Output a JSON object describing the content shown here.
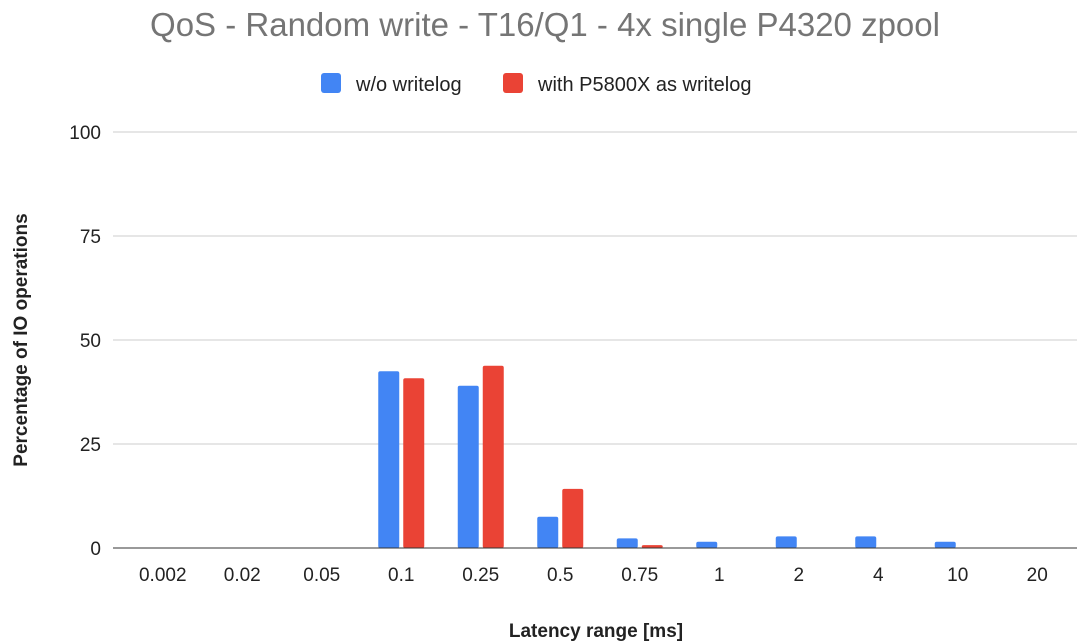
{
  "chart_data": {
    "type": "bar",
    "title": "QoS - Random write - T16/Q1 - 4x single P4320 zpool",
    "xlabel": "Latency range [ms]",
    "ylabel": "Percentage of IO operations",
    "categories": [
      "0.002",
      "0.02",
      "0.05",
      "0.1",
      "0.25",
      "0.5",
      "0.75",
      "1",
      "2",
      "4",
      "10",
      "20"
    ],
    "series": [
      {
        "name": "w/o writelog",
        "color": "#4285f4",
        "values": [
          0,
          0,
          0,
          42.5,
          39,
          7.5,
          2.3,
          1.5,
          2.8,
          2.8,
          1.5,
          0
        ]
      },
      {
        "name": "with P5800X as writelog",
        "color": "#ea4335",
        "values": [
          0,
          0,
          0,
          40.8,
          43.8,
          14.2,
          0.7,
          0,
          0,
          0,
          0,
          0
        ]
      }
    ],
    "ylim": [
      0,
      100
    ],
    "yticks": [
      0,
      25,
      50,
      75,
      100
    ],
    "grid": true,
    "legend_position": "top"
  }
}
